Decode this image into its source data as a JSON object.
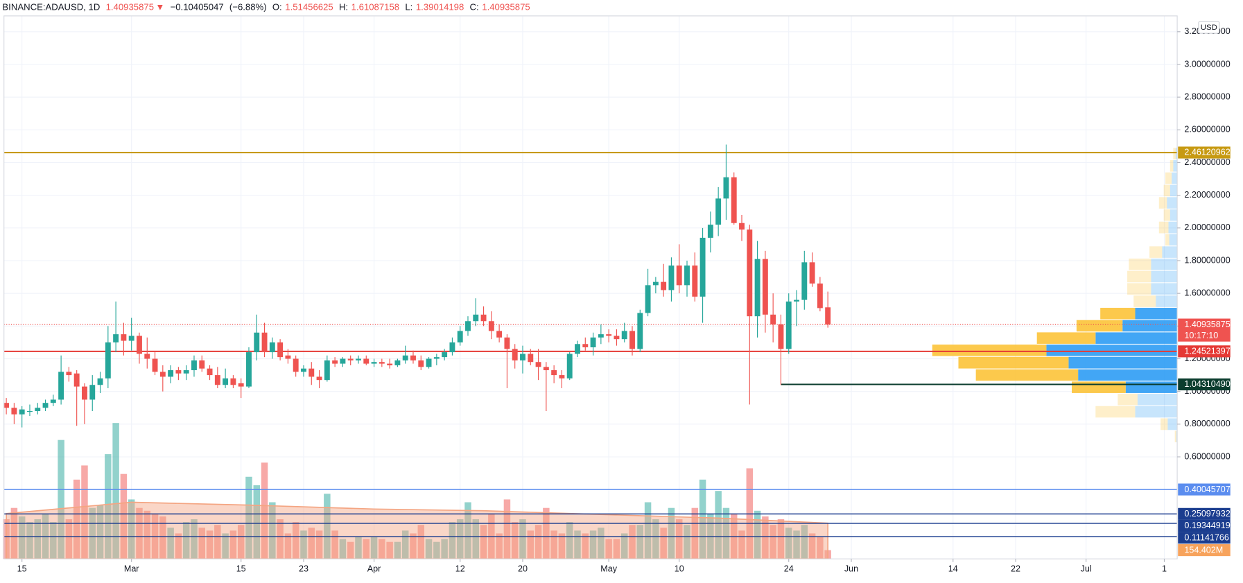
{
  "chart_data": {
    "type": "candlestick",
    "symbol": "BINANCE:ADAUSD, 1D",
    "change_arrow": "▼",
    "change": {
      "value": -0.10405047,
      "label": "−0.10405047"
    },
    "change_pct": {
      "value": -6.88,
      "label": "(−6.88%)"
    },
    "ohlc_labels": [
      "O:",
      "H:",
      "L:",
      "C:"
    ],
    "currency": "USD",
    "countdown": "10:17:10",
    "up_color": "#26a69a",
    "down_color": "#ef5350",
    "grid": true,
    "xlim": [
      43.7,
      193.65
    ],
    "xticks": [
      {
        "value": 46,
        "label": "15"
      },
      {
        "value": 60,
        "label": "Mar"
      },
      {
        "value": 74,
        "label": "15"
      },
      {
        "value": 82,
        "label": "23"
      },
      {
        "value": 91,
        "label": "Apr"
      },
      {
        "value": 102,
        "label": "12"
      },
      {
        "value": 110,
        "label": "20"
      },
      {
        "value": 121,
        "label": "May"
      },
      {
        "value": 130,
        "label": "10"
      },
      {
        "value": 144,
        "label": "24"
      },
      {
        "value": 152,
        "label": "Jun"
      },
      {
        "value": 165,
        "label": "14"
      },
      {
        "value": 173,
        "label": "22"
      },
      {
        "value": 182,
        "label": "Jul"
      },
      {
        "value": 192,
        "label": "1"
      }
    ],
    "ylim": [
      -0.024,
      3.297
    ],
    "yticks": [
      {
        "value": 0.6,
        "label": "0.60000000"
      },
      {
        "value": 0.8,
        "label": "0.80000000"
      },
      {
        "value": 1.0,
        "label": "1.00000000"
      },
      {
        "value": 1.2,
        "label": "1.20000000"
      },
      {
        "value": 1.4,
        "label": "1.40000000"
      },
      {
        "value": 1.6,
        "label": "1.60000000"
      },
      {
        "value": 1.8,
        "label": "1.80000000"
      },
      {
        "value": 2.0,
        "label": "2.00000000"
      },
      {
        "value": 2.2,
        "label": "2.20000000"
      },
      {
        "value": 2.4,
        "label": "2.40000000"
      },
      {
        "value": 2.6,
        "label": "2.60000000"
      },
      {
        "value": 2.8,
        "label": "2.80000000"
      },
      {
        "value": 3.0,
        "label": "3.00000000"
      },
      {
        "value": 3.2,
        "label": "3.20000000"
      }
    ],
    "x": [
      44,
      45,
      46,
      47,
      48,
      49,
      50,
      51,
      52,
      53,
      54,
      55,
      56,
      57,
      58,
      59,
      60,
      61,
      62,
      63,
      64,
      65,
      66,
      67,
      68,
      69,
      70,
      71,
      72,
      73,
      74,
      75,
      76,
      77,
      78,
      79,
      80,
      81,
      82,
      83,
      84,
      85,
      86,
      87,
      88,
      89,
      90,
      91,
      92,
      93,
      94,
      95,
      96,
      97,
      98,
      99,
      100,
      101,
      102,
      103,
      104,
      105,
      106,
      107,
      108,
      109,
      110,
      111,
      112,
      113,
      114,
      115,
      116,
      117,
      118,
      119,
      120,
      121,
      122,
      123,
      124,
      125,
      126,
      127,
      128,
      129,
      130,
      131,
      132,
      133,
      134,
      135,
      136,
      137,
      138,
      139,
      140,
      141,
      142,
      143,
      144,
      145,
      146,
      147,
      148,
      149
    ],
    "open": [
      0.93,
      0.9,
      0.86,
      0.88,
      0.88,
      0.9,
      0.93,
      0.95,
      1.12,
      1.11,
      1.03,
      0.95,
      1.04,
      1.08,
      1.3,
      1.35,
      1.31,
      1.34,
      1.23,
      1.2,
      1.12,
      1.09,
      1.13,
      1.11,
      1.13,
      1.19,
      1.14,
      1.1,
      1.04,
      1.08,
      1.05,
      1.03,
      1.24,
      1.36,
      1.24,
      1.3,
      1.22,
      1.2,
      1.12,
      1.14,
      1.09,
      1.07,
      1.19,
      1.17,
      1.2,
      1.19,
      1.2,
      1.17,
      1.18,
      1.17,
      1.16,
      1.19,
      1.22,
      1.19,
      1.15,
      1.2,
      1.21,
      1.24,
      1.3,
      1.37,
      1.43,
      1.47,
      1.43,
      1.37,
      1.33,
      1.26,
      1.19,
      1.23,
      1.18,
      1.15,
      1.13,
      1.1,
      1.08,
      1.23,
      1.29,
      1.27,
      1.33,
      1.35,
      1.34,
      1.32,
      1.37,
      1.26,
      1.48,
      1.65,
      1.67,
      1.62,
      1.77,
      1.65,
      1.77,
      1.58,
      1.94,
      2.02,
      2.18,
      2.31,
      2.03,
      1.99,
      1.46,
      1.81,
      1.47,
      1.41,
      1.26,
      1.55,
      1.56,
      1.79,
      1.66,
      1.51456625
    ],
    "high": [
      0.96,
      0.93,
      0.91,
      0.92,
      0.93,
      0.95,
      0.98,
      1.22,
      1.15,
      1.13,
      1.05,
      1.1,
      1.12,
      1.4,
      1.55,
      1.42,
      1.45,
      1.36,
      1.33,
      1.24,
      1.16,
      1.16,
      1.15,
      1.16,
      1.22,
      1.22,
      1.16,
      1.15,
      1.14,
      1.1,
      1.08,
      1.27,
      1.47,
      1.42,
      1.33,
      1.32,
      1.26,
      1.22,
      1.16,
      1.18,
      1.13,
      1.22,
      1.21,
      1.21,
      1.22,
      1.22,
      1.22,
      1.2,
      1.2,
      1.2,
      1.2,
      1.28,
      1.25,
      1.22,
      1.21,
      1.23,
      1.26,
      1.33,
      1.4,
      1.46,
      1.57,
      1.52,
      1.49,
      1.41,
      1.35,
      1.29,
      1.28,
      1.26,
      1.26,
      1.18,
      1.16,
      1.13,
      1.24,
      1.31,
      1.33,
      1.36,
      1.41,
      1.38,
      1.38,
      1.42,
      1.4,
      1.5,
      1.75,
      1.7,
      1.78,
      1.82,
      1.9,
      1.8,
      1.85,
      2.0,
      2.1,
      2.25,
      2.51,
      2.34,
      2.08,
      2.02,
      1.92,
      1.86,
      1.6,
      1.47,
      1.6,
      1.62,
      1.86,
      1.85,
      1.7,
      1.61087158
    ],
    "low": [
      0.86,
      0.8,
      0.78,
      0.85,
      0.86,
      0.88,
      0.91,
      0.92,
      1.06,
      0.79,
      0.8,
      0.88,
      0.99,
      1.02,
      1.24,
      1.22,
      1.25,
      1.17,
      1.14,
      1.1,
      1.0,
      1.05,
      1.07,
      1.07,
      1.09,
      1.12,
      1.07,
      1.02,
      1.02,
      1.02,
      0.96,
      1.02,
      1.19,
      1.21,
      1.2,
      1.19,
      1.17,
      1.09,
      1.09,
      1.04,
      1.02,
      1.06,
      1.15,
      1.15,
      1.16,
      1.17,
      1.16,
      1.15,
      1.15,
      1.14,
      1.15,
      1.17,
      1.17,
      1.13,
      1.14,
      1.16,
      1.19,
      1.22,
      1.28,
      1.34,
      1.4,
      1.4,
      1.32,
      1.3,
      1.02,
      1.14,
      1.11,
      1.16,
      1.07,
      0.88,
      1.05,
      1.02,
      1.07,
      1.21,
      1.25,
      1.22,
      1.29,
      1.3,
      1.28,
      1.3,
      1.22,
      1.24,
      1.46,
      1.6,
      1.58,
      1.55,
      1.6,
      1.58,
      1.55,
      1.42,
      1.85,
      1.95,
      2.05,
      2.02,
      1.92,
      0.92,
      1.33,
      1.36,
      1.3,
      1.04,
      1.23,
      1.4,
      1.5,
      1.64,
      1.49,
      1.39014198
    ],
    "close": [
      0.9,
      0.86,
      0.89,
      0.88,
      0.9,
      0.93,
      0.95,
      1.12,
      1.1,
      1.03,
      0.95,
      1.04,
      1.08,
      1.3,
      1.35,
      1.31,
      1.34,
      1.23,
      1.2,
      1.12,
      1.09,
      1.13,
      1.11,
      1.13,
      1.19,
      1.14,
      1.1,
      1.04,
      1.08,
      1.04,
      1.03,
      1.24,
      1.36,
      1.24,
      1.3,
      1.21,
      1.2,
      1.12,
      1.14,
      1.09,
      1.07,
      1.19,
      1.17,
      1.2,
      1.19,
      1.2,
      1.17,
      1.18,
      1.17,
      1.16,
      1.19,
      1.22,
      1.19,
      1.15,
      1.2,
      1.21,
      1.24,
      1.3,
      1.37,
      1.43,
      1.47,
      1.43,
      1.37,
      1.33,
      1.26,
      1.19,
      1.23,
      1.18,
      1.15,
      1.13,
      1.1,
      1.08,
      1.23,
      1.29,
      1.27,
      1.33,
      1.35,
      1.34,
      1.32,
      1.37,
      1.26,
      1.48,
      1.65,
      1.67,
      1.62,
      1.77,
      1.65,
      1.77,
      1.58,
      1.94,
      2.02,
      2.18,
      2.31,
      2.03,
      1.99,
      1.46,
      1.81,
      1.47,
      1.41,
      1.26,
      1.55,
      1.56,
      1.79,
      1.66,
      1.51,
      1.40935875
    ],
    "last_price_color": "#ef5350",
    "volume": {
      "vlim": [
        0,
        3500
      ],
      "values": [
        700,
        900,
        750,
        650,
        700,
        800,
        650,
        2100,
        700,
        1400,
        1650,
        900,
        950,
        1850,
        2400,
        1500,
        1050,
        900,
        850,
        800,
        750,
        550,
        450,
        650,
        700,
        550,
        500,
        600,
        450,
        500,
        600,
        1450,
        1300,
        1700,
        1000,
        700,
        450,
        650,
        500,
        550,
        500,
        1150,
        500,
        350,
        300,
        400,
        350,
        400,
        350,
        300,
        300,
        500,
        450,
        600,
        350,
        300,
        350,
        650,
        700,
        1000,
        700,
        600,
        800,
        450,
        1050,
        650,
        700,
        500,
        600,
        900,
        500,
        450,
        650,
        500,
        450,
        500,
        550,
        350,
        350,
        450,
        600,
        600,
        1000,
        700,
        550,
        900,
        700,
        600,
        900,
        1400,
        800,
        1200,
        900,
        800,
        500,
        1600,
        850,
        750,
        600,
        700,
        550,
        500,
        600,
        450,
        400,
        154.402
      ],
      "last_label": "154.402M",
      "label_color": "#f7a35c"
    },
    "volume_ma": {
      "color": "#f4a582",
      "x": [
        44,
        60,
        75,
        91,
        105,
        121,
        135,
        149
      ],
      "values": [
        800,
        1000,
        950,
        880,
        850,
        780,
        720,
        630
      ]
    },
    "price_lines": [
      {
        "value": 2.46120962,
        "color": "#c79a12"
      },
      {
        "value": 1.24521397,
        "color": "#e53935"
      },
      {
        "value": {
          "value": 1.0431049,
          "label": "1.04310490"
        },
        "color": "#0b3d2e",
        "from": 143
      },
      {
        "value": 0.40045707,
        "color": "#5b8def"
      },
      {
        "value": 0.25097932,
        "color": "#1b3d8f"
      },
      {
        "value": 0.19344919,
        "color": "#1b3d8f"
      },
      {
        "value": 0.11141766,
        "color": "#1b3d8f"
      }
    ],
    "profile": {
      "up_color": "#2196f3",
      "down_color": "#fbc02d",
      "bins": [
        0.687,
        0.762,
        0.838,
        0.913,
        0.988,
        1.063,
        1.138,
        1.214,
        1.289,
        1.364,
        1.439,
        1.514,
        1.589,
        1.665,
        1.74,
        1.815,
        1.89,
        1.965,
        2.041,
        2.116,
        2.191,
        2.266,
        2.342,
        2.417,
        2.492
      ],
      "up": [
        1,
        12,
        53,
        50,
        65,
        125,
        137,
        165,
        103,
        69,
        53,
        27,
        33,
        33,
        33,
        19,
        10,
        11,
        9,
        13,
        9,
        7,
        5,
        2
      ],
      "down": [
        2,
        9,
        50,
        25,
        68,
        129,
        139,
        144,
        74,
        58,
        44,
        28,
        30,
        30,
        28,
        16,
        5,
        12,
        8,
        10,
        8,
        8,
        4,
        3
      ],
      "in_value_area": [
        false,
        false,
        false,
        false,
        true,
        true,
        true,
        true,
        true,
        true,
        true,
        false,
        false,
        false,
        false,
        false,
        false,
        false,
        false,
        false,
        false,
        false,
        false,
        false
      ]
    }
  }
}
